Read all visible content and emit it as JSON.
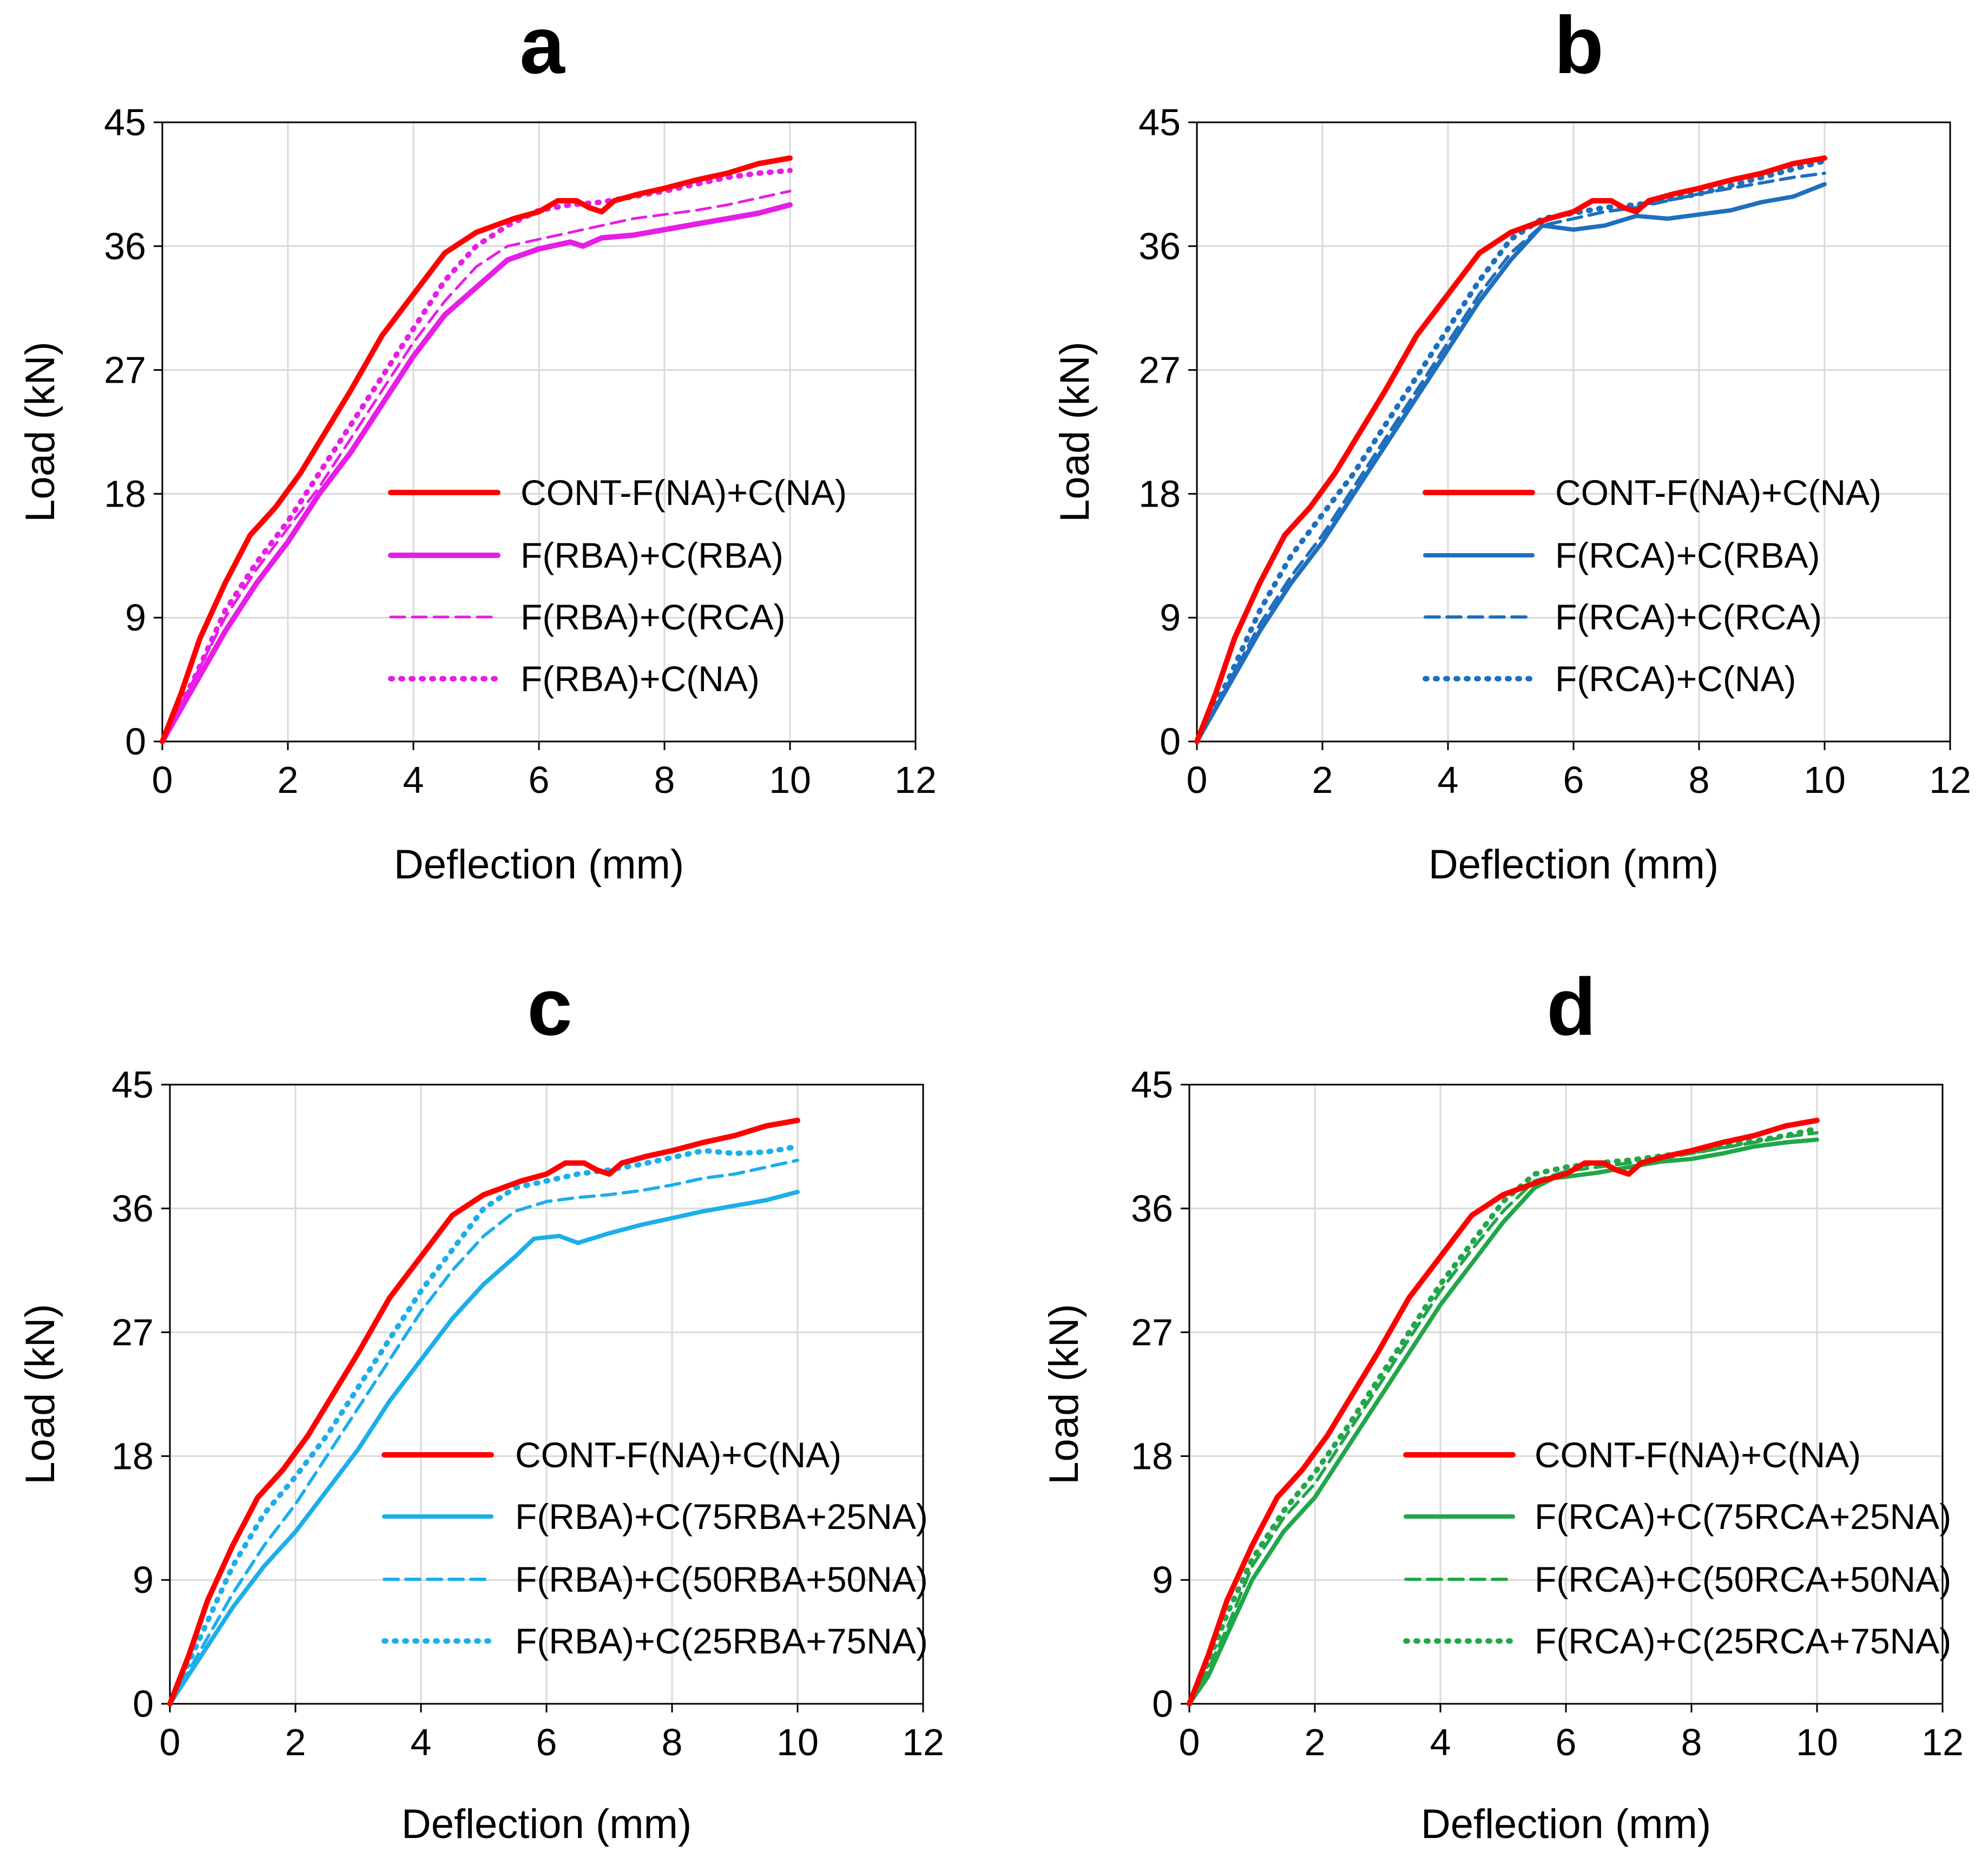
{
  "colors": {
    "red": "#ff0000",
    "magenta": "#e61ee6",
    "blue": "#1e6fbe",
    "cyan": "#1caeea",
    "green": "#22a64a",
    "grid": "#d9d9d9"
  },
  "chart_data": [
    {
      "type": "line",
      "title": "a",
      "xlabel": "Deflection (mm)",
      "ylabel": "Load (kN)",
      "xlim": [
        0,
        12
      ],
      "ylim": [
        0,
        45
      ],
      "xticks": [
        "0",
        "2",
        "4",
        "6",
        "8",
        "10",
        "12"
      ],
      "yticks": [
        "0",
        "9",
        "18",
        "27",
        "36",
        "45"
      ],
      "grid": true,
      "legend_position": "lower-right",
      "series": [
        {
          "name": "CONT-F(NA)+C(NA)",
          "color_key": "red",
          "style": "solid",
          "width": 10,
          "x": [
            0,
            0.3,
            0.6,
            1.0,
            1.4,
            1.8,
            2.2,
            2.6,
            3.0,
            3.5,
            4.0,
            4.5,
            5.0,
            5.3,
            5.6,
            6.0,
            6.3,
            6.6,
            6.8,
            7.0,
            7.2,
            7.6,
            8.0,
            8.5,
            9.0,
            9.5,
            10.0
          ],
          "y": [
            0,
            3.5,
            7.5,
            11.5,
            15.0,
            17.0,
            19.5,
            22.5,
            25.5,
            29.5,
            32.5,
            35.5,
            37.0,
            37.5,
            38.0,
            38.5,
            39.3,
            39.3,
            38.8,
            38.5,
            39.3,
            39.8,
            40.2,
            40.8,
            41.3,
            42.0,
            42.4
          ]
        },
        {
          "name": "F(RBA)+C(RBA)",
          "color_key": "magenta",
          "style": "solid",
          "width": 10,
          "x": [
            0,
            0.5,
            1.0,
            1.5,
            2.0,
            2.5,
            3.0,
            3.5,
            4.0,
            4.5,
            5.0,
            5.5,
            6.0,
            6.5,
            6.7,
            7.0,
            7.5,
            8.0,
            8.5,
            9.0,
            9.5,
            10.0
          ],
          "y": [
            0,
            4.0,
            8.0,
            11.5,
            14.5,
            18.0,
            21.0,
            24.5,
            28.0,
            31.0,
            33.0,
            35.0,
            35.8,
            36.3,
            36.0,
            36.6,
            36.8,
            37.2,
            37.6,
            38.0,
            38.4,
            39.0
          ]
        },
        {
          "name": "F(RBA)+C(RCA)",
          "color_key": "magenta",
          "style": "dashed",
          "width": 5,
          "x": [
            0,
            0.5,
            1.0,
            1.5,
            2.0,
            2.5,
            3.0,
            3.5,
            4.0,
            4.5,
            5.0,
            5.5,
            6.0,
            6.5,
            7.0,
            7.5,
            8.0,
            8.5,
            9.0,
            9.5,
            10.0
          ],
          "y": [
            0,
            4.5,
            9.0,
            12.5,
            15.5,
            18.5,
            22.0,
            25.5,
            29.0,
            32.0,
            34.5,
            36.0,
            36.5,
            37.0,
            37.5,
            38.0,
            38.3,
            38.6,
            39.0,
            39.5,
            40.0
          ]
        },
        {
          "name": "F(RBA)+C(NA)",
          "color_key": "magenta",
          "style": "dotted",
          "width": 10,
          "x": [
            0,
            0.5,
            1.0,
            1.5,
            2.0,
            2.5,
            3.0,
            3.5,
            4.0,
            4.5,
            5.0,
            5.5,
            6.0,
            6.5,
            7.0,
            7.5,
            8.0,
            8.5,
            9.0,
            9.5,
            10.0
          ],
          "y": [
            0,
            4.5,
            9.5,
            13.0,
            16.0,
            19.5,
            23.0,
            26.5,
            30.0,
            33.5,
            36.0,
            37.5,
            38.6,
            39.0,
            39.2,
            39.6,
            40.0,
            40.5,
            41.0,
            41.3,
            41.5
          ]
        }
      ]
    },
    {
      "type": "line",
      "title": "b",
      "xlabel": "Deflection (mm)",
      "ylabel": "Load (kN)",
      "xlim": [
        0,
        12
      ],
      "ylim": [
        0,
        45
      ],
      "xticks": [
        "0",
        "2",
        "4",
        "6",
        "8",
        "10",
        "12"
      ],
      "yticks": [
        "0",
        "9",
        "18",
        "27",
        "36",
        "45"
      ],
      "grid": true,
      "legend_position": "lower-right",
      "series": [
        {
          "name": "CONT-F(NA)+C(NA)",
          "color_key": "red",
          "style": "solid",
          "width": 10,
          "x": [
            0,
            0.3,
            0.6,
            1.0,
            1.4,
            1.8,
            2.2,
            2.6,
            3.0,
            3.5,
            4.0,
            4.5,
            5.0,
            5.3,
            5.6,
            6.0,
            6.3,
            6.6,
            6.8,
            7.0,
            7.2,
            7.6,
            8.0,
            8.5,
            9.0,
            9.5,
            10.0
          ],
          "y": [
            0,
            3.5,
            7.5,
            11.5,
            15.0,
            17.0,
            19.5,
            22.5,
            25.5,
            29.5,
            32.5,
            35.5,
            37.0,
            37.5,
            38.0,
            38.5,
            39.3,
            39.3,
            38.8,
            38.5,
            39.3,
            39.8,
            40.2,
            40.8,
            41.3,
            42.0,
            42.4
          ]
        },
        {
          "name": "F(RCA)+C(RBA)",
          "color_key": "blue",
          "style": "solid",
          "width": 8,
          "x": [
            0,
            0.5,
            1.0,
            1.5,
            2.0,
            2.5,
            3.0,
            3.5,
            4.0,
            4.5,
            5.0,
            5.5,
            6.0,
            6.5,
            7.0,
            7.5,
            8.0,
            8.5,
            9.0,
            9.5,
            10.0
          ],
          "y": [
            0,
            4.0,
            8.0,
            11.5,
            14.5,
            18.0,
            21.5,
            25.0,
            28.5,
            32.0,
            35.0,
            37.5,
            37.2,
            37.5,
            38.2,
            38.0,
            38.3,
            38.6,
            39.2,
            39.6,
            40.5
          ]
        },
        {
          "name": "F(RCA)+C(RCA)",
          "color_key": "blue",
          "style": "dashed",
          "width": 6,
          "x": [
            0,
            0.5,
            1.0,
            1.5,
            2.0,
            2.5,
            3.0,
            3.5,
            4.0,
            4.5,
            5.0,
            5.5,
            6.0,
            6.5,
            7.0,
            7.5,
            8.0,
            8.5,
            9.0,
            9.5,
            10.0
          ],
          "y": [
            0,
            4.2,
            8.5,
            12.0,
            15.0,
            18.5,
            22.0,
            25.5,
            29.0,
            32.5,
            35.5,
            37.5,
            38.0,
            38.5,
            38.8,
            39.3,
            39.8,
            40.2,
            40.6,
            41.0,
            41.3
          ]
        },
        {
          "name": "F(RCA)+C(NA)",
          "color_key": "blue",
          "style": "dotted",
          "width": 10,
          "x": [
            0,
            0.5,
            1.0,
            1.5,
            2.0,
            2.5,
            3.0,
            3.5,
            4.0,
            4.5,
            5.0,
            5.5,
            6.0,
            6.5,
            7.0,
            7.5,
            8.0,
            8.5,
            9.0,
            9.5,
            10.0
          ],
          "y": [
            0,
            4.5,
            9.5,
            13.5,
            16.5,
            19.5,
            23.0,
            26.5,
            30.0,
            33.5,
            36.5,
            38.0,
            38.4,
            38.8,
            39.0,
            39.4,
            39.8,
            40.4,
            41.0,
            41.6,
            42.2
          ]
        }
      ]
    },
    {
      "type": "line",
      "title": "c",
      "xlabel": "Deflection (mm)",
      "ylabel": "Load (kN)",
      "xlim": [
        0,
        12
      ],
      "ylim": [
        0,
        45
      ],
      "xticks": [
        "0",
        "2",
        "4",
        "6",
        "8",
        "10",
        "12"
      ],
      "yticks": [
        "0",
        "9",
        "18",
        "27",
        "36",
        "45"
      ],
      "grid": true,
      "legend_position": "lower-right",
      "series": [
        {
          "name": "CONT-F(NA)+C(NA)",
          "color_key": "red",
          "style": "solid",
          "width": 10,
          "x": [
            0,
            0.3,
            0.6,
            1.0,
            1.4,
            1.8,
            2.2,
            2.6,
            3.0,
            3.5,
            4.0,
            4.5,
            5.0,
            5.3,
            5.6,
            6.0,
            6.3,
            6.6,
            6.8,
            7.0,
            7.2,
            7.6,
            8.0,
            8.5,
            9.0,
            9.5,
            10.0
          ],
          "y": [
            0,
            3.5,
            7.5,
            11.5,
            15.0,
            17.0,
            19.5,
            22.5,
            25.5,
            29.5,
            32.5,
            35.5,
            37.0,
            37.5,
            38.0,
            38.5,
            39.3,
            39.3,
            38.8,
            38.5,
            39.3,
            39.8,
            40.2,
            40.8,
            41.3,
            42.0,
            42.4
          ]
        },
        {
          "name": "F(RBA)+C(75RBA+25NA)",
          "color_key": "cyan",
          "style": "solid",
          "width": 8,
          "x": [
            0,
            0.5,
            1.0,
            1.5,
            2.0,
            2.5,
            3.0,
            3.5,
            4.0,
            4.5,
            5.0,
            5.5,
            5.8,
            6.2,
            6.5,
            7.0,
            7.5,
            8.0,
            8.5,
            9.0,
            9.5,
            10.0
          ],
          "y": [
            0,
            3.5,
            7.0,
            10.0,
            12.5,
            15.5,
            18.5,
            22.0,
            25.0,
            28.0,
            30.5,
            32.5,
            33.8,
            34.0,
            33.5,
            34.2,
            34.8,
            35.3,
            35.8,
            36.2,
            36.6,
            37.2
          ]
        },
        {
          "name": "F(RBA)+C(50RBA+50NA)",
          "color_key": "cyan",
          "style": "dashed",
          "width": 6,
          "x": [
            0,
            0.5,
            1.0,
            1.5,
            2.0,
            2.5,
            3.0,
            3.5,
            4.0,
            4.5,
            5.0,
            5.5,
            6.0,
            6.5,
            7.0,
            7.5,
            8.0,
            8.5,
            9.0,
            9.5,
            10.0
          ],
          "y": [
            0,
            4.0,
            8.0,
            11.5,
            14.5,
            18.0,
            21.5,
            25.0,
            28.5,
            31.5,
            34.0,
            35.8,
            36.5,
            36.8,
            37.0,
            37.3,
            37.7,
            38.2,
            38.5,
            39.0,
            39.5
          ]
        },
        {
          "name": "F(RBA)+C(25RBA+75NA)",
          "color_key": "cyan",
          "style": "dotted",
          "width": 10,
          "x": [
            0,
            0.5,
            1.0,
            1.5,
            2.0,
            2.5,
            3.0,
            3.5,
            4.0,
            4.5,
            5.0,
            5.5,
            6.0,
            6.5,
            7.0,
            7.5,
            8.0,
            8.5,
            9.0,
            9.5,
            10.0
          ],
          "y": [
            0,
            5.0,
            10.0,
            13.8,
            16.5,
            19.5,
            23.0,
            26.5,
            30.0,
            33.0,
            36.0,
            37.5,
            38.0,
            38.5,
            38.8,
            39.2,
            39.7,
            40.2,
            40.0,
            40.1,
            40.5
          ]
        }
      ]
    },
    {
      "type": "line",
      "title": "d",
      "xlabel": "Deflection (mm)",
      "ylabel": "Load (kN)",
      "xlim": [
        0,
        12
      ],
      "ylim": [
        0,
        45
      ],
      "xticks": [
        "0",
        "2",
        "4",
        "6",
        "8",
        "10",
        "12"
      ],
      "yticks": [
        "0",
        "9",
        "18",
        "27",
        "36",
        "45"
      ],
      "grid": true,
      "legend_position": "lower-right",
      "series": [
        {
          "name": "CONT-F(NA)+C(NA)",
          "color_key": "red",
          "style": "solid",
          "width": 10,
          "x": [
            0,
            0.3,
            0.6,
            1.0,
            1.4,
            1.8,
            2.2,
            2.6,
            3.0,
            3.5,
            4.0,
            4.5,
            5.0,
            5.3,
            5.6,
            6.0,
            6.3,
            6.6,
            6.8,
            7.0,
            7.2,
            7.6,
            8.0,
            8.5,
            9.0,
            9.5,
            10.0
          ],
          "y": [
            0,
            3.5,
            7.5,
            11.5,
            15.0,
            17.0,
            19.5,
            22.5,
            25.5,
            29.5,
            32.5,
            35.5,
            37.0,
            37.5,
            38.0,
            38.5,
            39.3,
            39.3,
            38.8,
            38.5,
            39.3,
            39.8,
            40.2,
            40.8,
            41.3,
            42.0,
            42.4
          ]
        },
        {
          "name": "F(RCA)+C(75RCA+25NA)",
          "color_key": "green",
          "style": "solid",
          "width": 8,
          "x": [
            0,
            0.3,
            0.6,
            1.0,
            1.5,
            2.0,
            2.5,
            3.0,
            3.5,
            4.0,
            4.5,
            5.0,
            5.5,
            5.8,
            6.0,
            6.5,
            7.0,
            7.5,
            8.0,
            8.5,
            9.0,
            9.5,
            10.0
          ],
          "y": [
            0,
            2.0,
            5.0,
            9.0,
            12.5,
            15.0,
            18.5,
            22.0,
            25.5,
            29.0,
            32.0,
            35.0,
            37.5,
            38.2,
            38.3,
            38.6,
            39.0,
            39.4,
            39.6,
            40.0,
            40.5,
            40.8,
            41.0
          ]
        },
        {
          "name": "F(RCA)+C(50RCA+50NA)",
          "color_key": "green",
          "style": "dashed",
          "width": 6,
          "x": [
            0,
            0.3,
            0.6,
            1.0,
            1.5,
            2.0,
            2.5,
            3.0,
            3.5,
            4.0,
            4.5,
            5.0,
            5.5,
            6.0,
            6.5,
            7.0,
            7.5,
            8.0,
            8.5,
            9.0,
            9.5,
            10.0
          ],
          "y": [
            0,
            2.5,
            5.5,
            10.0,
            13.5,
            16.0,
            19.5,
            23.0,
            26.5,
            30.0,
            33.0,
            35.8,
            38.0,
            38.7,
            39.0,
            39.3,
            39.6,
            40.0,
            40.4,
            40.8,
            41.2,
            41.5
          ]
        },
        {
          "name": "F(RCA)+C(25RCA+75NA)",
          "color_key": "green",
          "style": "dotted",
          "width": 10,
          "x": [
            0,
            0.3,
            0.6,
            1.0,
            1.5,
            2.0,
            2.5,
            3.0,
            3.5,
            4.0,
            4.5,
            5.0,
            5.5,
            6.0,
            6.5,
            7.0,
            7.5,
            8.0,
            8.5,
            9.0,
            9.5,
            10.0
          ],
          "y": [
            0,
            3.0,
            6.5,
            10.5,
            14.0,
            16.8,
            20.0,
            23.5,
            27.0,
            30.5,
            33.5,
            36.5,
            38.5,
            39.0,
            39.3,
            39.5,
            39.8,
            40.1,
            40.5,
            40.9,
            41.3,
            41.8
          ]
        }
      ]
    }
  ]
}
